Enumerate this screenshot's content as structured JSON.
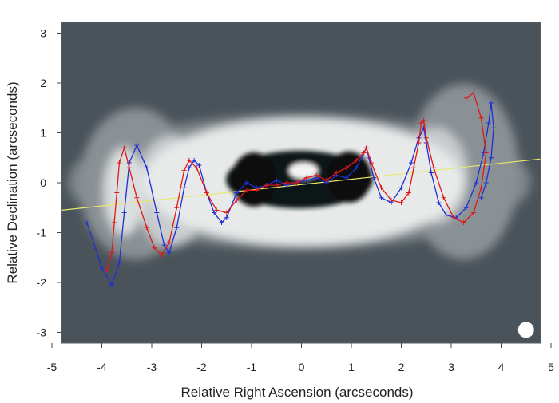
{
  "chart_data": {
    "type": "scatter",
    "title": "",
    "xlabel": "Relative Right Ascension (arcseconds)",
    "ylabel": "Relative Declination (arcseconds)",
    "xlim": [
      -5,
      5
    ],
    "ylim": [
      -3.3,
      3.3
    ],
    "x_ticks": [
      -5,
      -4,
      -3,
      -2,
      -1,
      0,
      1,
      2,
      3,
      4,
      5
    ],
    "y_ticks": [
      -3,
      -2,
      -1,
      0,
      1,
      2,
      3
    ],
    "x_tick_labels": [
      "-5",
      "-4",
      "-3",
      "-2",
      "-1",
      "0",
      "1",
      "2",
      "3",
      "4",
      "5"
    ],
    "y_tick_labels": [
      "-3",
      "-2",
      "-1",
      "0",
      "1",
      "2",
      "3"
    ],
    "background_image": "greyscale radio continuum map of a bipolar jet",
    "grid": false,
    "legend": "none",
    "beam": {
      "x": 4.5,
      "y": -2.95
    },
    "colors": {
      "background": "#4a535a",
      "jet_model_blue": "#1f2fd8",
      "jet_model_red": "#e01818",
      "axis_line": "#d8e060",
      "beam": "#ffffff"
    },
    "series": [
      {
        "style": "line",
        "color": "#e8e870",
        "x": [
          -4.8,
          5
        ],
        "y": [
          -0.55,
          0.5
        ]
      },
      {
        "style": "line",
        "color": "#1f2fd8",
        "x": [
          -4.3,
          -4.0,
          -3.8,
          -3.65,
          -3.55,
          -3.45,
          -3.3,
          -3.1,
          -2.9,
          -2.75,
          -2.65,
          -2.5,
          -2.35,
          -2.25,
          -2.15,
          -2.05,
          -1.9,
          -1.75,
          -1.6,
          -1.5,
          -1.3,
          -1.1,
          -0.9,
          -0.7,
          -0.5,
          -0.3,
          -0.1,
          0.1,
          0.3,
          0.5,
          0.7,
          0.9,
          1.1,
          1.25,
          1.3,
          1.35,
          1.45,
          1.6,
          1.8,
          2.0,
          2.2,
          2.35,
          2.45,
          2.5,
          2.6,
          2.75,
          2.9,
          3.1,
          3.3,
          3.5,
          3.65,
          3.75,
          3.8,
          3.85,
          3.8,
          3.7,
          3.6
        ],
        "y": [
          -0.8,
          -1.7,
          -2.05,
          -1.6,
          -0.6,
          0.4,
          0.75,
          0.3,
          -0.6,
          -1.25,
          -1.4,
          -0.9,
          -0.1,
          0.3,
          0.45,
          0.35,
          -0.2,
          -0.6,
          -0.8,
          -0.7,
          -0.2,
          0.0,
          -0.1,
          -0.05,
          0.05,
          -0.05,
          0.0,
          0.05,
          0.1,
          0.0,
          0.15,
          0.1,
          0.3,
          0.6,
          0.7,
          0.5,
          0.1,
          -0.3,
          -0.4,
          -0.1,
          0.4,
          0.9,
          1.1,
          0.8,
          0.2,
          -0.4,
          -0.65,
          -0.7,
          -0.5,
          0.0,
          0.6,
          1.2,
          1.6,
          1.1,
          0.5,
          0.0,
          -0.3
        ]
      },
      {
        "style": "line",
        "color": "#e01818",
        "x": [
          -3.9,
          -3.8,
          -3.75,
          -3.7,
          -3.65,
          -3.55,
          -3.45,
          -3.3,
          -3.1,
          -2.95,
          -2.8,
          -2.65,
          -2.5,
          -2.35,
          -2.25,
          -2.1,
          -1.9,
          -1.7,
          -1.5,
          -1.3,
          -1.1,
          -0.9,
          -0.7,
          -0.5,
          -0.3,
          -0.1,
          0.1,
          0.3,
          0.5,
          0.7,
          0.9,
          1.1,
          1.25,
          1.3,
          1.4,
          1.6,
          1.8,
          2.0,
          2.15,
          2.25,
          2.35,
          2.4,
          2.45,
          2.5,
          2.65,
          2.85,
          3.05,
          3.25,
          3.45,
          3.6,
          3.7,
          3.6,
          3.45,
          3.3
        ],
        "y": [
          -1.75,
          -1.4,
          -0.8,
          -0.2,
          0.4,
          0.7,
          0.3,
          -0.3,
          -0.9,
          -1.3,
          -1.45,
          -1.2,
          -0.5,
          0.25,
          0.45,
          0.3,
          -0.2,
          -0.55,
          -0.6,
          -0.35,
          -0.15,
          -0.15,
          -0.05,
          -0.05,
          0.0,
          0.0,
          0.1,
          0.15,
          0.05,
          0.2,
          0.3,
          0.45,
          0.6,
          0.7,
          0.4,
          -0.1,
          -0.35,
          -0.4,
          -0.2,
          0.3,
          0.8,
          1.2,
          1.25,
          0.9,
          0.3,
          -0.3,
          -0.7,
          -0.8,
          -0.6,
          -0.1,
          0.6,
          1.3,
          1.8,
          1.7
        ]
      }
    ]
  }
}
